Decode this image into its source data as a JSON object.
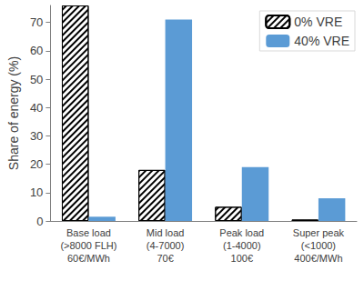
{
  "chart_data": {
    "type": "bar",
    "y_label": "Share of energy (%)",
    "categories": [
      "Base load\n(>8000 FLH)\n60€/MWh",
      "Mid load\n(4-7000)\n70€",
      "Peak load\n(1-4000)\n100€",
      "Super peak\n(<1000)\n400€/MWh"
    ],
    "series": [
      {
        "name": "0% VRE",
        "color": "#000000",
        "marker": "hatch",
        "values": [
          76,
          18,
          5,
          0.5
        ]
      },
      {
        "name": "40% VRE",
        "color": "#5b9bd5",
        "marker": "solid",
        "values": [
          1.5,
          71,
          19,
          8
        ]
      }
    ],
    "ylim": [
      0,
      76
    ],
    "yticks": [
      0,
      10,
      20,
      30,
      40,
      50,
      60,
      70
    ],
    "grid": false,
    "legend": "top-right",
    "data_labels": false
  }
}
